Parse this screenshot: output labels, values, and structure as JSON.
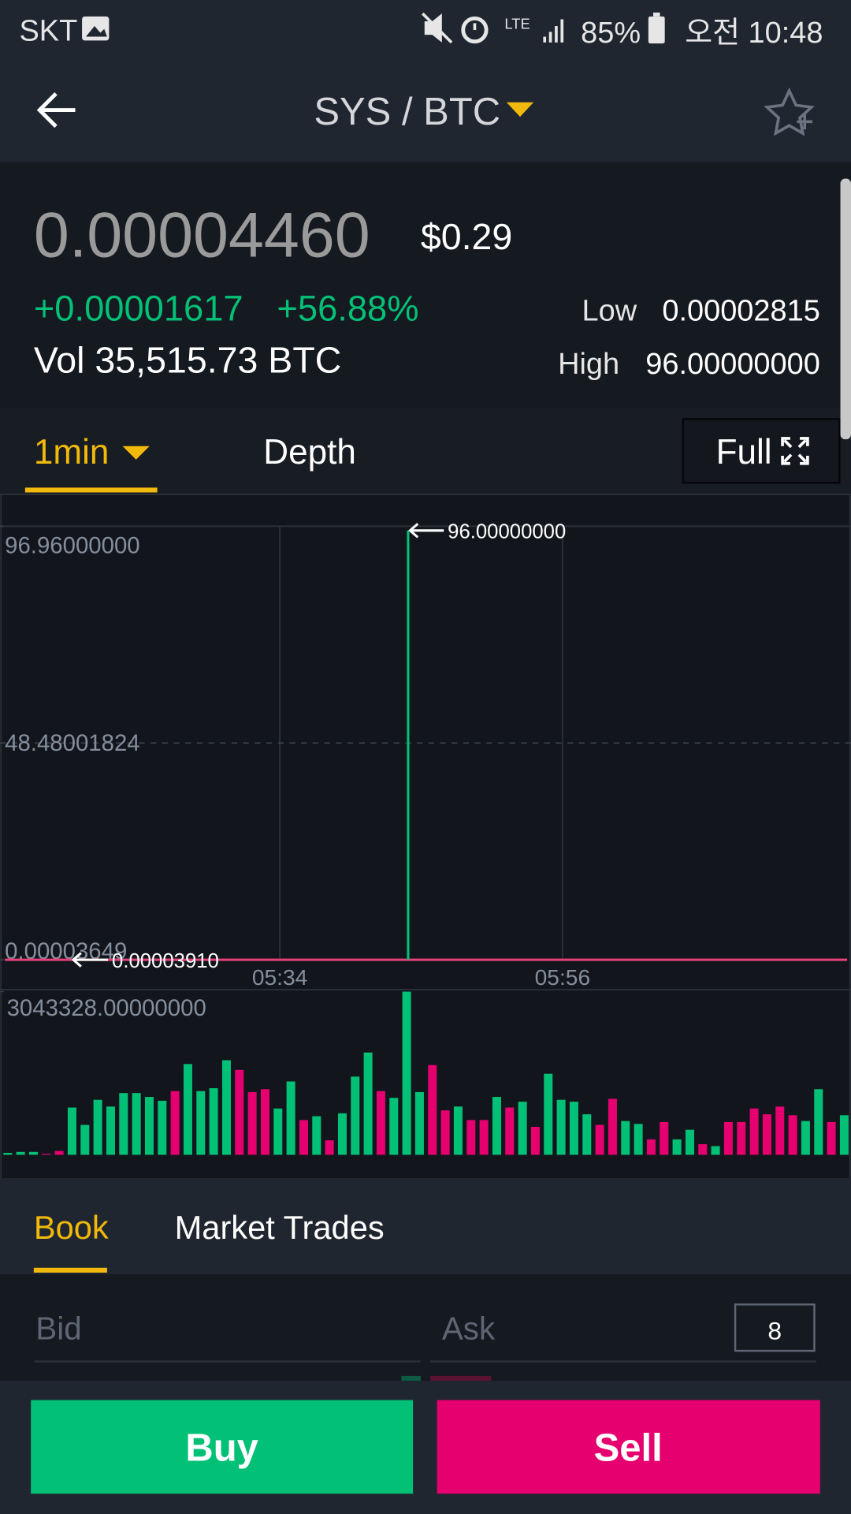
{
  "status_bar": {
    "carrier": "SKT",
    "network": "LTE",
    "battery": "85%",
    "time": "오전 10:48"
  },
  "header": {
    "title": "SYS / BTC"
  },
  "ticker": {
    "price": "0.00004460",
    "usd": "$0.29",
    "change": "+0.00001617",
    "change_pct": "+56.88%",
    "volume": "Vol 35,515.73 BTC",
    "low_label": "Low",
    "low": "0.00002815",
    "high_label": "High",
    "high": "96.00000000"
  },
  "chart_tabs": {
    "interval": "1min",
    "depth": "Depth",
    "full": "Full"
  },
  "chart": {
    "price": {
      "ylim": [
        3.649e-05,
        96.96
      ],
      "yticks": [
        {
          "value": 96.96,
          "label": "96.96000000"
        },
        {
          "value": 48.48001824,
          "label": "48.48001824"
        },
        {
          "value": 3.649e-05,
          "label": "0.00003649"
        }
      ],
      "xticks": [
        "05:34",
        "05:56"
      ],
      "high": {
        "value": 96,
        "label": "96.00000000"
      },
      "last": {
        "value": 3.91e-05,
        "label": "0.00003910"
      },
      "up_color": "#02c076",
      "down_color": "#e8407a"
    },
    "volume": {
      "max": {
        "value": 3043328,
        "label": "3043328.00000000"
      },
      "values": [
        36000,
        54000,
        54000,
        18000,
        72000,
        882000,
        558000,
        1026000,
        900000,
        1152000,
        1152000,
        1080000,
        1008000,
        1188000,
        1692000,
        1188000,
        1242000,
        1764000,
        1584000,
        1170000,
        1224000,
        864000,
        1368000,
        648000,
        720000,
        270000,
        774000,
        1458000,
        1908000,
        1188000,
        1062000,
        3043328,
        1170000,
        1674000,
        828000,
        900000,
        648000,
        648000,
        1080000,
        882000,
        990000,
        522000,
        1512000,
        1026000,
        990000,
        756000,
        558000,
        1044000,
        630000,
        576000,
        288000,
        612000,
        288000,
        468000,
        198000,
        162000,
        612000,
        612000,
        864000,
        756000,
        900000,
        738000,
        630000,
        1224000,
        612000,
        738000
      ],
      "directions": [
        "up",
        "up",
        "up",
        "down",
        "down",
        "up",
        "up",
        "up",
        "up",
        "up",
        "up",
        "up",
        "up",
        "down",
        "up",
        "up",
        "up",
        "up",
        "down",
        "down",
        "down",
        "up",
        "up",
        "down",
        "up",
        "down",
        "up",
        "up",
        "up",
        "down",
        "up",
        "up",
        "up",
        "down",
        "down",
        "up",
        "down",
        "down",
        "up",
        "down",
        "up",
        "down",
        "up",
        "up",
        "up",
        "up",
        "down",
        "down",
        "up",
        "up",
        "down",
        "down",
        "up",
        "up",
        "down",
        "up",
        "down",
        "down",
        "down",
        "down",
        "down",
        "down",
        "up",
        "up",
        "down",
        "up"
      ],
      "up_color": "#02c076",
      "down_color": "#e6006f"
    }
  },
  "book_tabs": {
    "book": "Book",
    "trades": "Market Trades"
  },
  "book": {
    "bid": "Bid",
    "ask": "Ask",
    "depth": "8"
  },
  "actions": {
    "buy": "Buy",
    "sell": "Sell"
  }
}
